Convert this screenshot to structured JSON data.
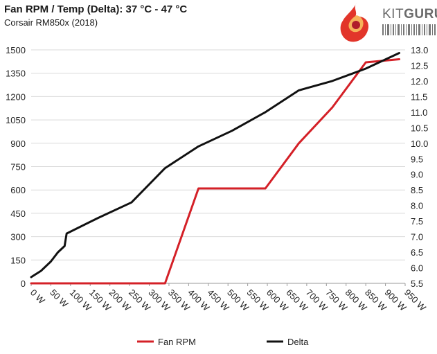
{
  "header": {
    "title": "Fan RPM / Temp (Delta): 37 °C - 47 °C",
    "subtitle": "Corsair RM850x (2018)",
    "brand_prefix": "KIT",
    "brand_suffix": "GURU"
  },
  "chart_data": {
    "type": "line",
    "categories": [
      "0 W",
      "50 W",
      "100 W",
      "150 W",
      "200 W",
      "250 W",
      "300 W",
      "350 W",
      "400 W",
      "450 W",
      "500 W",
      "550 W",
      "600 W",
      "650 W",
      "700 W",
      "750 W",
      "800 W",
      "850 W",
      "900 W",
      "950 W"
    ],
    "y_left": {
      "ylim": [
        0,
        1500
      ],
      "ticks": [
        "0",
        "150",
        "300",
        "450",
        "600",
        "750",
        "900",
        "1050",
        "1200",
        "1350",
        "1500"
      ]
    },
    "y_right": {
      "ylim": [
        5.5,
        13.0
      ],
      "ticks": [
        "5.5",
        "6.0",
        "6.5",
        "7.0",
        "7.5",
        "8.0",
        "8.5",
        "9.0",
        "9.5",
        "10.0",
        "10.5",
        "11.0",
        "11.5",
        "12.0",
        "12.5",
        "13.0"
      ]
    },
    "grid": true,
    "legend_position": "bottom",
    "series": [
      {
        "name": "Fan RPM",
        "axis": "left",
        "color": "#d42027",
        "x": [
          0,
          340,
          425,
          595,
          680,
          765,
          850,
          935
        ],
        "y": [
          0,
          0,
          610,
          610,
          900,
          1130,
          1420,
          1440
        ]
      },
      {
        "name": "Delta",
        "axis": "right",
        "color": "#111111",
        "x": [
          0,
          25,
          50,
          68,
          85,
          90,
          170,
          255,
          340,
          425,
          510,
          595,
          680,
          765,
          850,
          935
        ],
        "y": [
          5.7,
          5.9,
          6.2,
          6.5,
          6.7,
          7.1,
          7.6,
          8.1,
          9.2,
          9.9,
          10.4,
          11.0,
          11.7,
          12.0,
          12.4,
          12.9
        ]
      }
    ]
  }
}
